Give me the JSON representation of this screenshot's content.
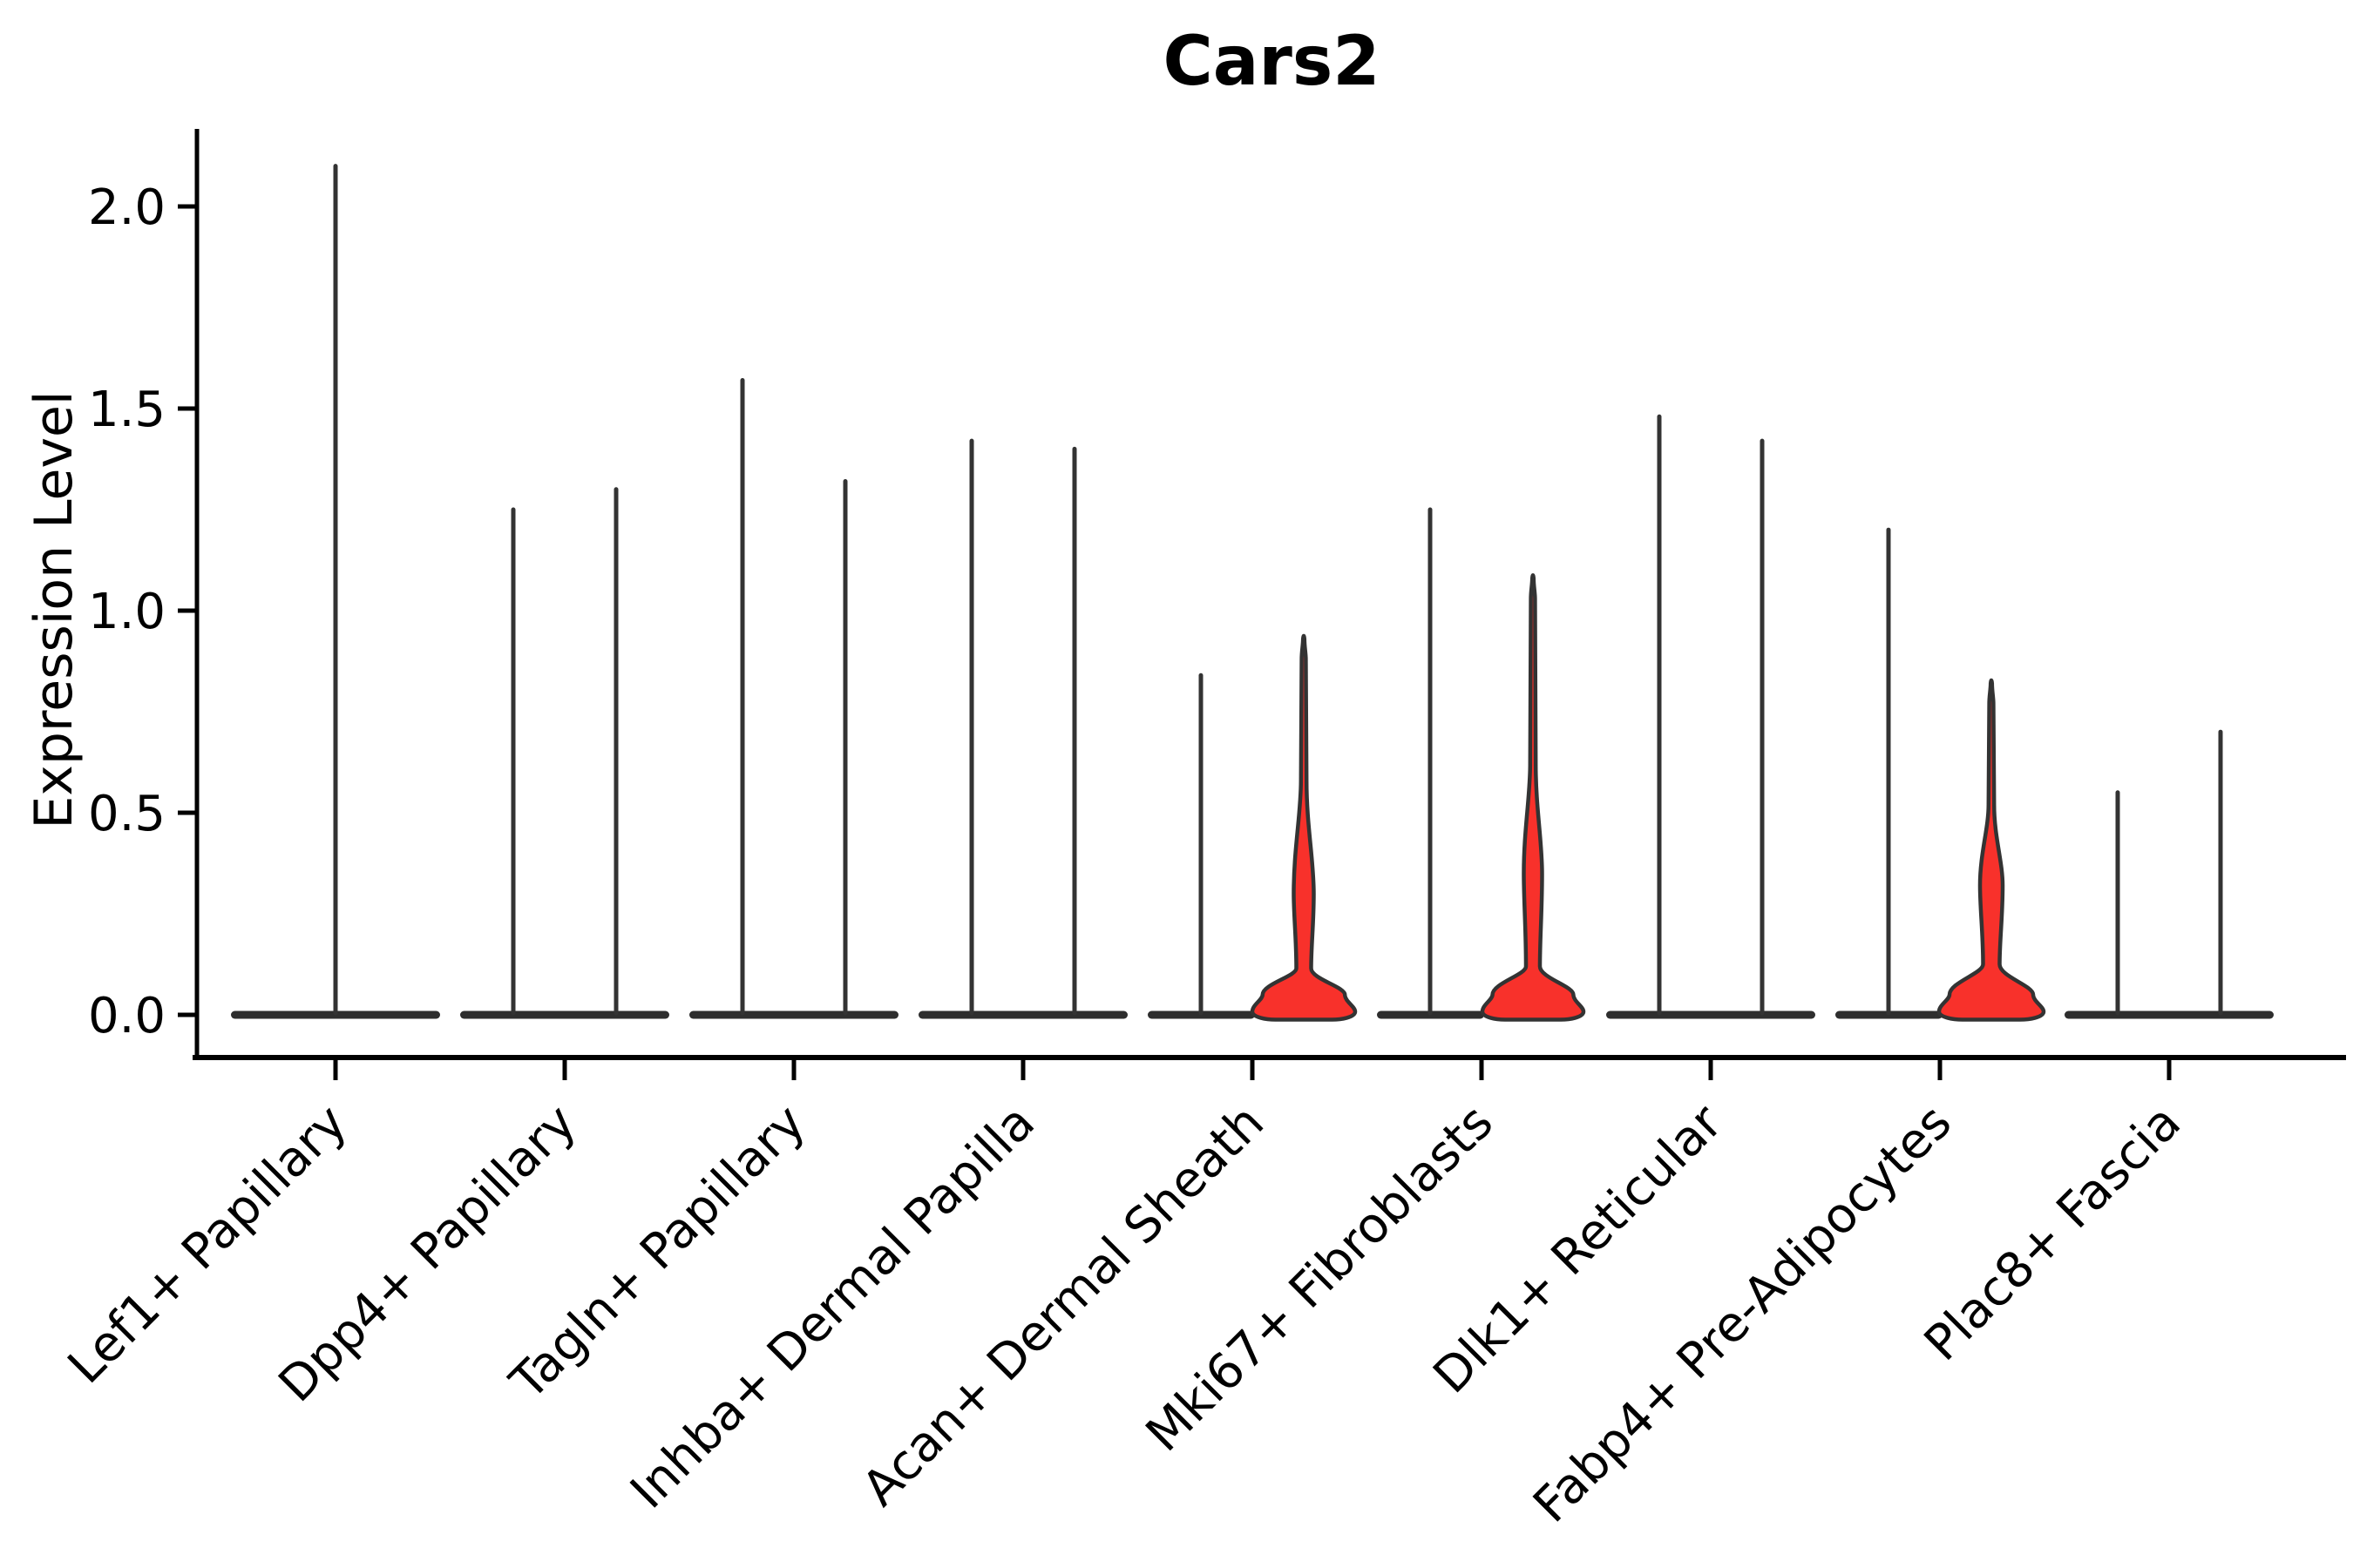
{
  "chart_data": {
    "type": "violin",
    "title": "Cars2",
    "ylabel": "Expression Level",
    "xlabel": "",
    "yticks": [
      0.0,
      0.5,
      1.0,
      1.5,
      2.0
    ],
    "ylim": [
      -0.11,
      2.19
    ],
    "grid": false,
    "legend": "none",
    "highlight_fill": "#F8312B",
    "outline_color": "#333333",
    "base_bar_color": "#2e2e2e",
    "axis_color": "#000000",
    "categories": [
      {
        "label": "Lef1+ Papillary",
        "violins": [
          {
            "group": "center",
            "shape": "spike",
            "max": 2.1
          }
        ]
      },
      {
        "label": "Dpp4+ Papillary",
        "violins": [
          {
            "group": "left",
            "shape": "spike",
            "max": 1.25
          },
          {
            "group": "right",
            "shape": "spike",
            "max": 1.3
          }
        ]
      },
      {
        "label": "Tagln+ Papillary",
        "violins": [
          {
            "group": "left",
            "shape": "spike",
            "max": 1.57
          },
          {
            "group": "right",
            "shape": "spike",
            "max": 1.32
          }
        ]
      },
      {
        "label": "Inhba+ Dermal Papilla",
        "violins": [
          {
            "group": "left",
            "shape": "spike",
            "max": 1.42
          },
          {
            "group": "right",
            "shape": "spike",
            "max": 1.4
          }
        ]
      },
      {
        "label": "Acan+ Dermal Sheath",
        "violins": [
          {
            "group": "left",
            "shape": "spike",
            "max": 0.84
          },
          {
            "group": "right",
            "shape": "violin",
            "max": 0.93,
            "fill": "highlight",
            "profile": {
              "thin": 0.58,
              "bulge_peak": 0.3,
              "bulge_halfwidth": 11.5,
              "neck": 0.115,
              "neck_halfwidth": 8.5,
              "base_halfwidth": 59
            }
          }
        ]
      },
      {
        "label": "Mki67+ Fibroblasts",
        "violins": [
          {
            "group": "left",
            "shape": "spike",
            "max": 1.25
          },
          {
            "group": "right",
            "shape": "violin",
            "max": 1.08,
            "fill": "highlight",
            "profile": {
              "thin": 0.62,
              "bulge_peak": 0.35,
              "bulge_halfwidth": 10.5,
              "neck": 0.12,
              "neck_halfwidth": 8.0,
              "base_halfwidth": 58
            }
          }
        ]
      },
      {
        "label": "Dlk1+ Reticular",
        "violins": [
          {
            "group": "left",
            "shape": "spike",
            "max": 1.48
          },
          {
            "group": "right",
            "shape": "spike",
            "max": 1.42
          }
        ]
      },
      {
        "label": "Fabp4+ Pre-Adipocytes",
        "violins": [
          {
            "group": "left",
            "shape": "spike",
            "max": 1.2
          },
          {
            "group": "right",
            "shape": "violin",
            "max": 0.82,
            "fill": "highlight",
            "profile": {
              "thin": 0.52,
              "bulge_peak": 0.32,
              "bulge_halfwidth": 13.0,
              "neck": 0.125,
              "neck_halfwidth": 9.5,
              "base_halfwidth": 60
            }
          }
        ]
      },
      {
        "label": "Plac8+ Fascia",
        "violins": [
          {
            "group": "left",
            "shape": "spike",
            "max": 0.55
          },
          {
            "group": "right",
            "shape": "spike",
            "max": 0.7
          }
        ]
      }
    ]
  }
}
